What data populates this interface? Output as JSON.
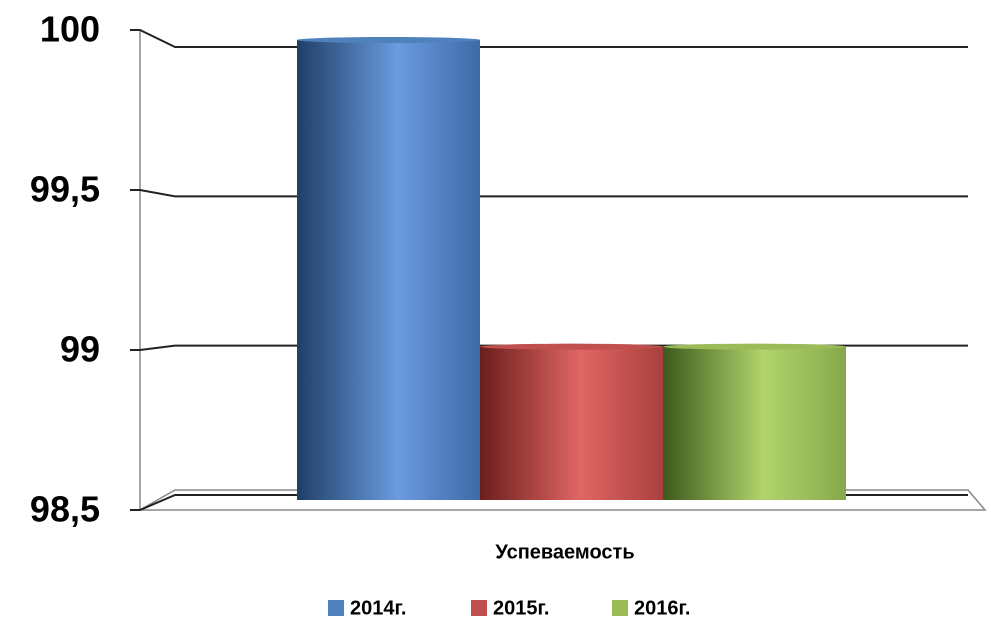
{
  "chart_data": {
    "type": "bar3d",
    "categories": [
      "Успеваемость"
    ],
    "series": [
      {
        "name": "2014г.",
        "color": "#4f81bd",
        "values": [
          100
        ]
      },
      {
        "name": "2015г.",
        "color": "#c0504d",
        "values": [
          99
        ]
      },
      {
        "name": "2016г.",
        "color": "#9bbb59",
        "values": [
          99
        ]
      }
    ],
    "ylim": [
      98.5,
      100
    ],
    "yticks": [
      {
        "value": 98.5,
        "label": "98,5"
      },
      99,
      {
        "value": 99.5,
        "label": "99,5"
      },
      100
    ],
    "grid": true,
    "legend": "bottom"
  }
}
